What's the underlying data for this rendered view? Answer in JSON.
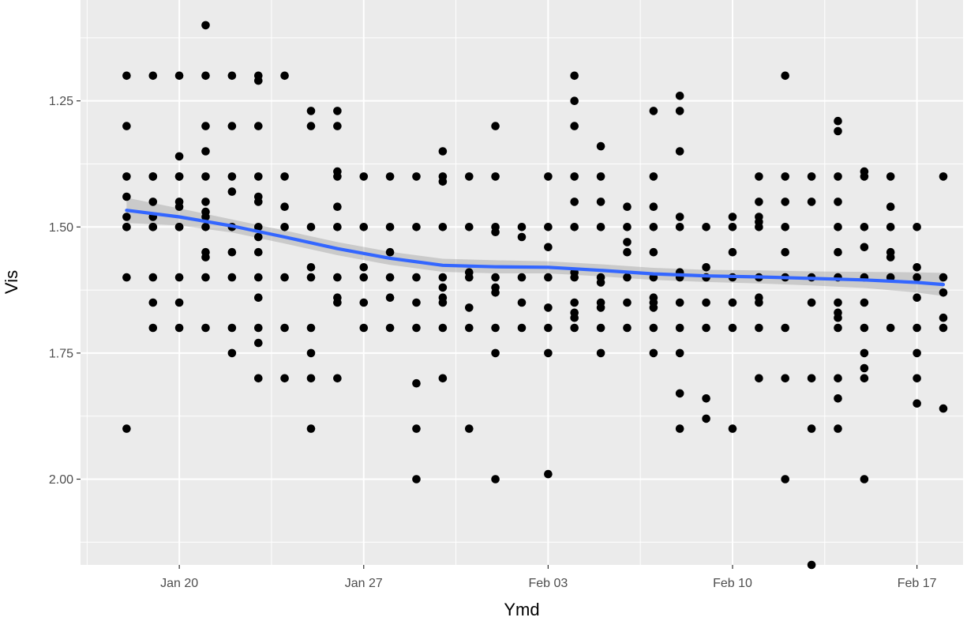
{
  "chart_data": {
    "type": "scatter",
    "xlabel": "Ymd",
    "ylabel": "Vis",
    "y_reversed": true,
    "xlim": [
      "2019-01-16T06:00",
      "2019-02-18T18:00"
    ],
    "ylim": [
      1.05,
      2.17
    ],
    "x_ticks": [
      {
        "date": "2019-01-20",
        "label": "Jan 20"
      },
      {
        "date": "2019-01-27",
        "label": "Jan 27"
      },
      {
        "date": "2019-02-03",
        "label": "Feb 03"
      },
      {
        "date": "2019-02-10",
        "label": "Feb 10"
      },
      {
        "date": "2019-02-17",
        "label": "Feb 17"
      }
    ],
    "y_ticks": [
      {
        "value": 1.25,
        "label": "1.25"
      },
      {
        "value": 1.5,
        "label": "1.50"
      },
      {
        "value": 1.75,
        "label": "1.75"
      },
      {
        "value": 2.0,
        "label": "2.00"
      }
    ],
    "grid": true,
    "points_by_date": [
      {
        "date": "2019-01-18",
        "vis": [
          1.2,
          1.3,
          1.4,
          1.44,
          1.48,
          1.5,
          1.5,
          1.6,
          1.9
        ]
      },
      {
        "date": "2019-01-19",
        "vis": [
          1.2,
          1.4,
          1.4,
          1.45,
          1.48,
          1.5,
          1.5,
          1.6,
          1.65,
          1.7
        ]
      },
      {
        "date": "2019-01-20",
        "vis": [
          1.2,
          1.36,
          1.4,
          1.4,
          1.45,
          1.46,
          1.5,
          1.5,
          1.6,
          1.65,
          1.7
        ]
      },
      {
        "date": "2019-01-21",
        "vis": [
          1.1,
          1.2,
          1.3,
          1.35,
          1.4,
          1.45,
          1.47,
          1.48,
          1.5,
          1.55,
          1.56,
          1.6,
          1.7
        ]
      },
      {
        "date": "2019-01-22",
        "vis": [
          1.2,
          1.3,
          1.4,
          1.43,
          1.5,
          1.55,
          1.6,
          1.7,
          1.75
        ]
      },
      {
        "date": "2019-01-23",
        "vis": [
          1.2,
          1.21,
          1.3,
          1.4,
          1.44,
          1.45,
          1.5,
          1.52,
          1.55,
          1.6,
          1.64,
          1.7,
          1.73,
          1.8
        ]
      },
      {
        "date": "2019-01-24",
        "vis": [
          1.2,
          1.4,
          1.46,
          1.5,
          1.6,
          1.7,
          1.8
        ]
      },
      {
        "date": "2019-01-25",
        "vis": [
          1.27,
          1.3,
          1.5,
          1.58,
          1.6,
          1.7,
          1.75,
          1.8,
          1.9
        ]
      },
      {
        "date": "2019-01-26",
        "vis": [
          1.27,
          1.3,
          1.39,
          1.4,
          1.46,
          1.5,
          1.6,
          1.64,
          1.65,
          1.8
        ]
      },
      {
        "date": "2019-01-27",
        "vis": [
          1.4,
          1.5,
          1.58,
          1.6,
          1.65,
          1.7
        ]
      },
      {
        "date": "2019-01-28",
        "vis": [
          1.4,
          1.5,
          1.55,
          1.6,
          1.64,
          1.7
        ]
      },
      {
        "date": "2019-01-29",
        "vis": [
          1.4,
          1.5,
          1.6,
          1.65,
          1.7,
          1.81,
          1.9,
          2.0
        ]
      },
      {
        "date": "2019-01-30",
        "vis": [
          1.35,
          1.4,
          1.41,
          1.5,
          1.6,
          1.62,
          1.64,
          1.65,
          1.7,
          1.8
        ]
      },
      {
        "date": "2019-01-31",
        "vis": [
          1.4,
          1.5,
          1.59,
          1.6,
          1.66,
          1.7,
          1.9
        ]
      },
      {
        "date": "2019-02-01",
        "vis": [
          1.3,
          1.4,
          1.5,
          1.51,
          1.6,
          1.62,
          1.63,
          1.7,
          1.75,
          2.0
        ]
      },
      {
        "date": "2019-02-02",
        "vis": [
          1.5,
          1.52,
          1.6,
          1.65,
          1.7
        ]
      },
      {
        "date": "2019-02-03",
        "vis": [
          1.4,
          1.5,
          1.54,
          1.6,
          1.66,
          1.7,
          1.75,
          1.99
        ]
      },
      {
        "date": "2019-02-04",
        "vis": [
          1.2,
          1.25,
          1.3,
          1.4,
          1.45,
          1.5,
          1.59,
          1.6,
          1.65,
          1.67,
          1.68,
          1.7
        ]
      },
      {
        "date": "2019-02-05",
        "vis": [
          1.34,
          1.4,
          1.45,
          1.5,
          1.6,
          1.61,
          1.65,
          1.66,
          1.7,
          1.75
        ]
      },
      {
        "date": "2019-02-06",
        "vis": [
          1.46,
          1.5,
          1.53,
          1.55,
          1.6,
          1.65,
          1.7
        ]
      },
      {
        "date": "2019-02-07",
        "vis": [
          1.27,
          1.4,
          1.46,
          1.5,
          1.55,
          1.6,
          1.64,
          1.65,
          1.66,
          1.7,
          1.75
        ]
      },
      {
        "date": "2019-02-08",
        "vis": [
          1.24,
          1.27,
          1.35,
          1.48,
          1.5,
          1.59,
          1.6,
          1.65,
          1.7,
          1.75,
          1.83,
          1.9
        ]
      },
      {
        "date": "2019-02-09",
        "vis": [
          1.5,
          1.58,
          1.6,
          1.65,
          1.7,
          1.84,
          1.88
        ]
      },
      {
        "date": "2019-02-10",
        "vis": [
          1.48,
          1.5,
          1.55,
          1.6,
          1.65,
          1.7,
          1.9
        ]
      },
      {
        "date": "2019-02-11",
        "vis": [
          1.4,
          1.45,
          1.48,
          1.49,
          1.5,
          1.6,
          1.64,
          1.65,
          1.7,
          1.8
        ]
      },
      {
        "date": "2019-02-12",
        "vis": [
          1.2,
          1.4,
          1.45,
          1.5,
          1.55,
          1.6,
          1.7,
          1.8,
          2.0
        ]
      },
      {
        "date": "2019-02-13",
        "vis": [
          1.4,
          1.45,
          1.6,
          1.65,
          1.8,
          1.9,
          2.17
        ]
      },
      {
        "date": "2019-02-14",
        "vis": [
          1.29,
          1.31,
          1.4,
          1.45,
          1.5,
          1.55,
          1.6,
          1.65,
          1.67,
          1.68,
          1.7,
          1.8,
          1.84,
          1.9
        ]
      },
      {
        "date": "2019-02-15",
        "vis": [
          1.39,
          1.4,
          1.5,
          1.54,
          1.6,
          1.65,
          1.7,
          1.75,
          1.78,
          1.8,
          2.0
        ]
      },
      {
        "date": "2019-02-16",
        "vis": [
          1.4,
          1.46,
          1.5,
          1.55,
          1.56,
          1.6,
          1.7
        ]
      },
      {
        "date": "2019-02-17",
        "vis": [
          1.5,
          1.58,
          1.6,
          1.64,
          1.7,
          1.75,
          1.8,
          1.85
        ]
      },
      {
        "date": "2019-02-18",
        "vis": [
          1.4,
          1.6,
          1.63,
          1.68,
          1.7,
          1.86
        ]
      }
    ],
    "smooth": {
      "color": "#3366ff",
      "band_color": "#999999",
      "points": [
        {
          "date": "2019-01-18",
          "vis": 1.467,
          "se": 0.025
        },
        {
          "date": "2019-01-20",
          "vis": 1.48,
          "se": 0.017
        },
        {
          "date": "2019-01-22",
          "vis": 1.498,
          "se": 0.013
        },
        {
          "date": "2019-01-24",
          "vis": 1.52,
          "se": 0.013
        },
        {
          "date": "2019-01-26",
          "vis": 1.543,
          "se": 0.013
        },
        {
          "date": "2019-01-28",
          "vis": 1.562,
          "se": 0.013
        },
        {
          "date": "2019-01-30",
          "vis": 1.576,
          "se": 0.013
        },
        {
          "date": "2019-02-01",
          "vis": 1.579,
          "se": 0.013
        },
        {
          "date": "2019-02-03",
          "vis": 1.58,
          "se": 0.012
        },
        {
          "date": "2019-02-05",
          "vis": 1.586,
          "se": 0.012
        },
        {
          "date": "2019-02-07",
          "vis": 1.593,
          "se": 0.012
        },
        {
          "date": "2019-02-09",
          "vis": 1.597,
          "se": 0.012
        },
        {
          "date": "2019-02-11",
          "vis": 1.599,
          "se": 0.013
        },
        {
          "date": "2019-02-13",
          "vis": 1.602,
          "se": 0.014
        },
        {
          "date": "2019-02-15",
          "vis": 1.605,
          "se": 0.016
        },
        {
          "date": "2019-02-17",
          "vis": 1.61,
          "se": 0.02
        },
        {
          "date": "2019-02-18",
          "vis": 1.614,
          "se": 0.023
        }
      ]
    }
  }
}
